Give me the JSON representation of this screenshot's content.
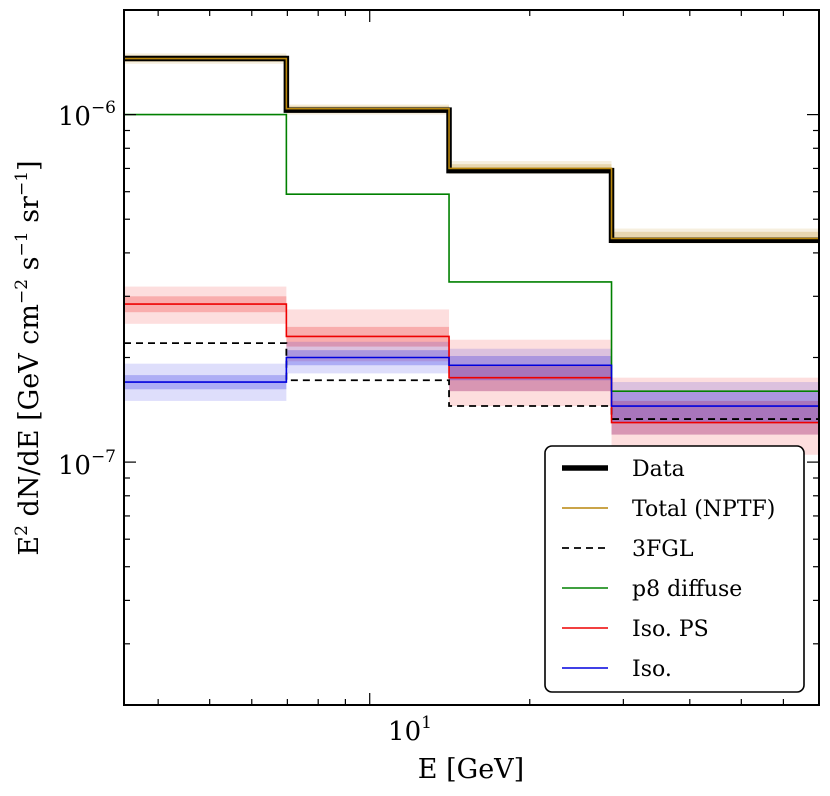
{
  "chart_data": {
    "type": "line",
    "title": "",
    "xlabel": "E [GeV]",
    "ylabel": "E^2 dN/dE [GeV cm^-2 s^-1 sr^-1]",
    "xscale": "log",
    "yscale": "log",
    "xlim": [
      3.45,
      70.0
    ],
    "ylim": [
      2e-08,
      2e-06
    ],
    "bin_edges": [
      3.45,
      6.97,
      14.1,
      28.5,
      70.0
    ],
    "x_tick_label": {
      "base": "10",
      "exp": "1",
      "value": 10
    },
    "y_tick_labels": [
      {
        "base": "10",
        "exp": "−6",
        "value": 1e-06
      },
      {
        "base": "10",
        "exp": "−7",
        "value": 1e-07
      }
    ],
    "legend_position": "lower-right",
    "series": [
      {
        "name": "Data",
        "color": "#000000",
        "style": "thick",
        "values": [
          1.45e-06,
          1.03e-06,
          6.9e-07,
          4.35e-07
        ]
      },
      {
        "name": "Total (NPTF)",
        "color": "#b8860b",
        "style": "solid",
        "values": [
          1.45e-06,
          1.04e-06,
          7e-07,
          4.4e-07
        ],
        "band_inner": [
          [
            1.42e-06,
            1.48e-06
          ],
          [
            1.01e-06,
            1.06e-06
          ],
          [
            6.85e-07,
            7.2e-07
          ],
          [
            4.3e-07,
            4.6e-07
          ]
        ],
        "band_outer": [
          [
            1.4e-06,
            1.5e-06
          ],
          [
            1e-06,
            1.07e-06
          ],
          [
            6.75e-07,
            7.35e-07
          ],
          [
            4.25e-07,
            4.7e-07
          ]
        ]
      },
      {
        "name": "3FGL",
        "color": "#000000",
        "style": "dashed",
        "values": [
          2.2e-07,
          1.72e-07,
          1.45e-07,
          1.33e-07
        ]
      },
      {
        "name": "p8 diffuse",
        "color": "#008000",
        "style": "solid",
        "values": [
          1e-06,
          5.9e-07,
          3.3e-07,
          1.6e-07
        ]
      },
      {
        "name": "Iso. PS",
        "color": "#ee0000",
        "style": "solid",
        "values": [
          2.85e-07,
          2.3e-07,
          1.75e-07,
          1.3e-07
        ],
        "band_inner": [
          [
            2.7e-07,
            3e-07
          ],
          [
            2.15e-07,
            2.45e-07
          ],
          [
            1.6e-07,
            1.9e-07
          ],
          [
            1.2e-07,
            1.5e-07
          ]
        ],
        "band_outer": [
          [
            2.5e-07,
            3.2e-07
          ],
          [
            1.95e-07,
            2.75e-07
          ],
          [
            1.45e-07,
            2.25e-07
          ],
          [
            1.05e-07,
            1.75e-07
          ]
        ]
      },
      {
        "name": "Iso.",
        "color": "#0000dd",
        "style": "solid",
        "values": [
          1.7e-07,
          2e-07,
          1.9e-07,
          1.45e-07
        ],
        "band_inner": [
          [
            1.62e-07,
            1.78e-07
          ],
          [
            1.9e-07,
            2.1e-07
          ],
          [
            1.72e-07,
            2.02e-07
          ],
          [
            1.3e-07,
            1.6e-07
          ]
        ],
        "band_outer": [
          [
            1.5e-07,
            1.92e-07
          ],
          [
            1.8e-07,
            2.22e-07
          ],
          [
            1.6e-07,
            2.12e-07
          ],
          [
            1.2e-07,
            1.7e-07
          ]
        ]
      }
    ]
  }
}
